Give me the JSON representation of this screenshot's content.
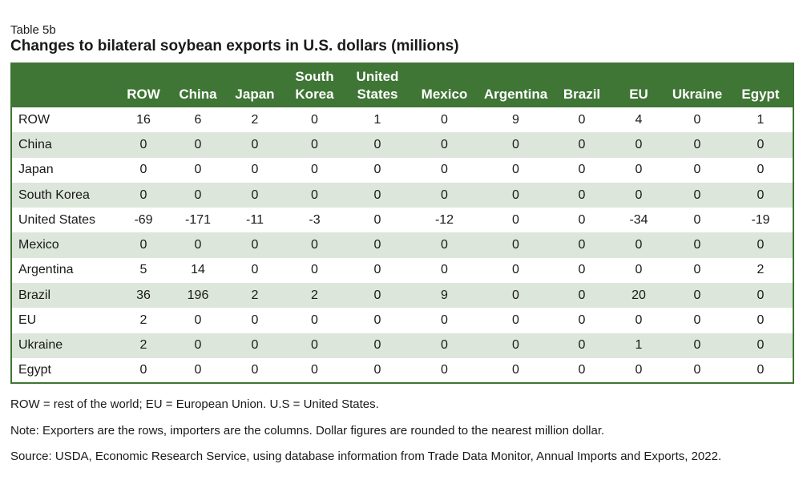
{
  "table_label": "Table 5b",
  "title": "Changes to bilateral soybean exports in U.S. dollars (millions)",
  "columns": [
    [
      "ROW",
      ""
    ],
    [
      "China",
      ""
    ],
    [
      "Japan",
      ""
    ],
    [
      "South",
      "Korea"
    ],
    [
      "United",
      "States"
    ],
    [
      "Mexico",
      ""
    ],
    [
      "Argentina",
      ""
    ],
    [
      "Brazil",
      ""
    ],
    [
      "EU",
      ""
    ],
    [
      "Ukraine",
      ""
    ],
    [
      "Egypt",
      ""
    ]
  ],
  "rows": [
    {
      "label": "ROW",
      "values": [
        "16",
        "6",
        "2",
        "0",
        "1",
        "0",
        "9",
        "0",
        "4",
        "0",
        "1"
      ]
    },
    {
      "label": "China",
      "values": [
        "0",
        "0",
        "0",
        "0",
        "0",
        "0",
        "0",
        "0",
        "0",
        "0",
        "0"
      ]
    },
    {
      "label": "Japan",
      "values": [
        "0",
        "0",
        "0",
        "0",
        "0",
        "0",
        "0",
        "0",
        "0",
        "0",
        "0"
      ]
    },
    {
      "label": "South Korea",
      "values": [
        "0",
        "0",
        "0",
        "0",
        "0",
        "0",
        "0",
        "0",
        "0",
        "0",
        "0"
      ]
    },
    {
      "label": "United States",
      "values": [
        "-69",
        "-171",
        "-11",
        "-3",
        "0",
        "-12",
        "0",
        "0",
        "-34",
        "0",
        "-19"
      ]
    },
    {
      "label": "Mexico",
      "values": [
        "0",
        "0",
        "0",
        "0",
        "0",
        "0",
        "0",
        "0",
        "0",
        "0",
        "0"
      ]
    },
    {
      "label": "Argentina",
      "values": [
        "5",
        "14",
        "0",
        "0",
        "0",
        "0",
        "0",
        "0",
        "0",
        "0",
        "2"
      ]
    },
    {
      "label": "Brazil",
      "values": [
        "36",
        "196",
        "2",
        "2",
        "0",
        "9",
        "0",
        "0",
        "20",
        "0",
        "0"
      ]
    },
    {
      "label": "EU",
      "values": [
        "2",
        "0",
        "0",
        "0",
        "0",
        "0",
        "0",
        "0",
        "0",
        "0",
        "0"
      ]
    },
    {
      "label": "Ukraine",
      "values": [
        "2",
        "0",
        "0",
        "0",
        "0",
        "0",
        "0",
        "0",
        "1",
        "0",
        "0"
      ]
    },
    {
      "label": "Egypt",
      "values": [
        "0",
        "0",
        "0",
        "0",
        "0",
        "0",
        "0",
        "0",
        "0",
        "0",
        "0"
      ]
    }
  ],
  "notes": [
    "ROW = rest of the world; EU = European Union. U.S = United States.",
    "Note: Exporters are the rows, importers are the columns. Dollar figures are rounded to the nearest million dollar.",
    "Source: USDA, Economic Research Service, using database information from Trade Data Monitor, Annual Imports and Exports, 2022."
  ],
  "colors": {
    "header": "#3f7535",
    "stripe": "#dce6da"
  }
}
